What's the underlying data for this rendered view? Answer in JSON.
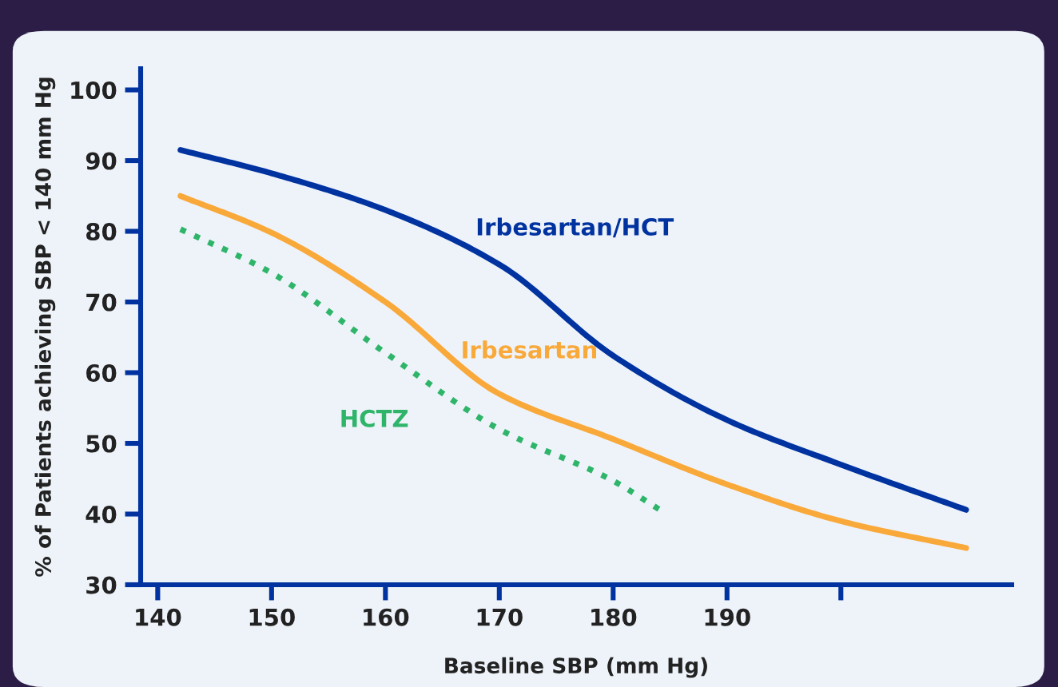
{
  "chart_data": {
    "type": "line",
    "xlabel": "Baseline SBP (mm Hg)",
    "ylabel": "% of Patients achieving SBP < 140 mm Hg",
    "xlim": [
      138.5,
      215
    ],
    "ylim": [
      30,
      103
    ],
    "xticks": [
      140,
      150,
      160,
      170,
      180,
      190,
      {
        "value": 200,
        "label": null
      }
    ],
    "yticks": [
      30,
      40,
      50,
      60,
      70,
      80,
      90,
      100
    ],
    "grid": false,
    "legend": false,
    "marker": "none",
    "series": [
      {
        "name": "Irbesartan/HCT",
        "color": "#0033a0",
        "line_style": "solid",
        "x": [
          142,
          150,
          160,
          170,
          180,
          190,
          200,
          211
        ],
        "values": [
          91.5,
          88.2,
          83,
          75.3,
          62.4,
          53.3,
          47,
          40.6
        ]
      },
      {
        "name": "Irbesartan",
        "color": "#f9a93a",
        "line_style": "solid",
        "x": [
          142,
          150,
          160,
          170,
          180,
          190,
          200,
          211
        ],
        "values": [
          85,
          79.8,
          70,
          57,
          50.6,
          44.2,
          39,
          35.2
        ]
      },
      {
        "name": "HCTZ",
        "color": "#2fb56a",
        "line_style": "dotted",
        "x": [
          142,
          150,
          160,
          170,
          180,
          184.3
        ],
        "values": [
          80.3,
          74.1,
          62.8,
          52,
          44.7,
          40.4
        ]
      }
    ]
  }
}
